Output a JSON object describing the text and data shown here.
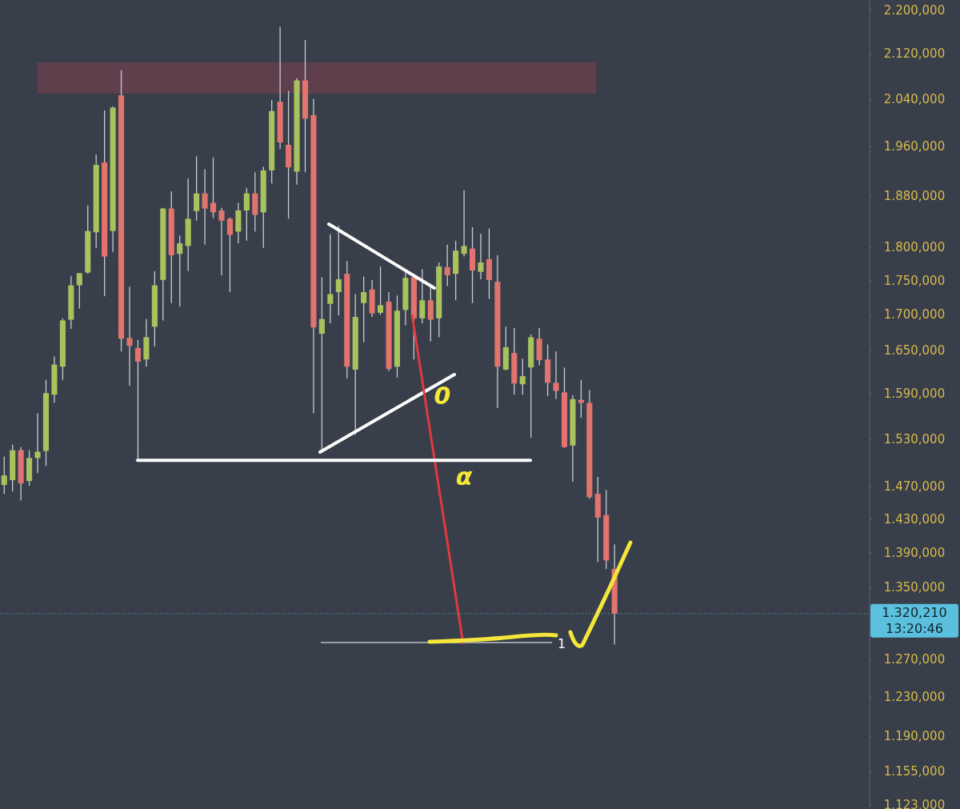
{
  "chart_data": {
    "type": "candlestick",
    "log": true,
    "tick_labels": "y",
    "categories": [
      null,
      null,
      null,
      null,
      null,
      null,
      null,
      null,
      null,
      null,
      null,
      null,
      null,
      null,
      null,
      null,
      null,
      null,
      null,
      null,
      null,
      null,
      null,
      null,
      null,
      null,
      null,
      null,
      null,
      null,
      null,
      null,
      null,
      null,
      null,
      null,
      null,
      null,
      null,
      null,
      null,
      null,
      null,
      null,
      null,
      null,
      null,
      null,
      null,
      null,
      null,
      null,
      null,
      null,
      null,
      null,
      null,
      null,
      null,
      null,
      null,
      null,
      null,
      null,
      null,
      null,
      null,
      null,
      null,
      null,
      null,
      null,
      null,
      null,
      null,
      null,
      null,
      null,
      null,
      null,
      null,
      null,
      null,
      null,
      null,
      null,
      null,
      null,
      null,
      null,
      null,
      null,
      null,
      null,
      null,
      null,
      null,
      null,
      null,
      null,
      null,
      null,
      null,
      null
    ],
    "ohlc": [
      [
        1472,
        1508,
        1461,
        1484
      ],
      [
        1478,
        1523,
        1464,
        1516
      ],
      [
        1516,
        1520,
        1453,
        1474
      ],
      [
        1477,
        1516,
        1471,
        1506
      ],
      [
        1506,
        1564,
        1487,
        1514
      ],
      [
        1515,
        1609,
        1496,
        1591
      ],
      [
        1589,
        1641,
        1578,
        1630
      ],
      [
        1627,
        1695,
        1609,
        1692
      ],
      [
        1693,
        1757,
        1680,
        1743
      ],
      [
        1743,
        1761,
        1709,
        1761
      ],
      [
        1762,
        1865,
        1760,
        1825
      ],
      [
        1823,
        1947,
        1799,
        1930
      ],
      [
        1934,
        2021,
        1727,
        1786
      ],
      [
        1825,
        2028,
        1793,
        2026
      ],
      [
        2047,
        2091,
        1648,
        1666
      ],
      [
        1667,
        1741,
        1601,
        1656
      ],
      [
        1653,
        1664,
        1503,
        1634
      ],
      [
        1637,
        1694,
        1627,
        1668
      ],
      [
        1683,
        1764,
        1655,
        1743
      ],
      [
        1751,
        1861,
        1692,
        1860
      ],
      [
        1860,
        1887,
        1717,
        1788
      ],
      [
        1790,
        1818,
        1712,
        1806
      ],
      [
        1802,
        1908,
        1764,
        1844
      ],
      [
        1856,
        1944,
        1841,
        1884
      ],
      [
        1884,
        1923,
        1804,
        1860
      ],
      [
        1869,
        1942,
        1845,
        1854
      ],
      [
        1857,
        1861,
        1758,
        1841
      ],
      [
        1844,
        1846,
        1733,
        1819
      ],
      [
        1824,
        1869,
        1806,
        1857
      ],
      [
        1857,
        1893,
        1810,
        1884
      ],
      [
        1884,
        1918,
        1824,
        1850
      ],
      [
        1854,
        1927,
        1799,
        1921
      ],
      [
        1921,
        2039,
        1900,
        2020
      ],
      [
        2036,
        2169,
        1956,
        1967
      ],
      [
        1963,
        2055,
        1844,
        1926
      ],
      [
        1919,
        2077,
        1898,
        2073
      ],
      [
        2073,
        2145,
        1918,
        2007
      ],
      [
        2013,
        2041,
        1564,
        1682
      ],
      [
        1673,
        1755,
        1514,
        1694
      ],
      [
        1716,
        1820,
        1688,
        1730
      ],
      [
        1733,
        1833,
        1699,
        1752
      ],
      [
        1760,
        1779,
        1611,
        1627
      ],
      [
        1623,
        1730,
        1536,
        1697
      ],
      [
        1717,
        1756,
        1661,
        1733
      ],
      [
        1737,
        1751,
        1697,
        1702
      ],
      [
        1703,
        1771,
        1700,
        1714
      ],
      [
        1719,
        1733,
        1621,
        1624
      ],
      [
        1627,
        1728,
        1612,
        1706
      ],
      [
        1707,
        1767,
        1685,
        1754
      ],
      [
        1755,
        1760,
        1637,
        1695
      ],
      [
        1695,
        1767,
        1688,
        1721
      ],
      [
        1721,
        1745,
        1662,
        1693
      ],
      [
        1695,
        1777,
        1668,
        1771
      ],
      [
        1770,
        1804,
        1742,
        1758
      ],
      [
        1760,
        1810,
        1721,
        1795
      ],
      [
        1790,
        1889,
        1786,
        1802
      ],
      [
        1798,
        1831,
        1717,
        1765
      ],
      [
        1763,
        1821,
        1752,
        1777
      ],
      [
        1782,
        1829,
        1723,
        1751
      ],
      [
        1748,
        1788,
        1571,
        1627
      ],
      [
        1623,
        1683,
        1622,
        1654
      ],
      [
        1646,
        1681,
        1589,
        1604
      ],
      [
        1603,
        1638,
        1589,
        1614
      ],
      [
        1626,
        1672,
        1532,
        1668
      ],
      [
        1666,
        1681,
        1629,
        1636
      ],
      [
        1637,
        1658,
        1587,
        1605
      ],
      [
        1605,
        1648,
        1583,
        1594
      ],
      [
        1592,
        1626,
        1519,
        1520
      ],
      [
        1522,
        1588,
        1476,
        1583
      ],
      [
        1582,
        1609,
        1558,
        1578
      ],
      [
        1578,
        1595,
        1455,
        1457
      ],
      [
        1461,
        1482,
        1379,
        1432
      ],
      [
        1435,
        1466,
        1371,
        1381
      ],
      [
        1371,
        1400,
        1286,
        1320.21
      ],
      null,
      null,
      null,
      null,
      null,
      null,
      null,
      null,
      null,
      null,
      null,
      null,
      null,
      null,
      null,
      null,
      null,
      null,
      null,
      null,
      null,
      null,
      null,
      null,
      null,
      null,
      null,
      null,
      null,
      null
    ],
    "colors": [
      "#a8c35e",
      "#a8c35e",
      "#e27470",
      "#a8c35e",
      "#a8c35e",
      "#a8c35e",
      "#a8c35e",
      "#a8c35e",
      "#a8c35e",
      "#a8c35e",
      "#a8c35e",
      "#a8c35e",
      "#e27470",
      "#a8c35e",
      "#e27470",
      "#e27470",
      "#e27470",
      "#a8c35e",
      "#a8c35e",
      "#a8c35e",
      "#e27470",
      "#a8c35e",
      "#a8c35e",
      "#a8c35e",
      "#e27470",
      "#e27470",
      "#e27470",
      "#e27470",
      "#a8c35e",
      "#a8c35e",
      "#e27470",
      "#a8c35e",
      "#a8c35e",
      "#e27470",
      "#e27470",
      "#a8c35e",
      "#e27470",
      "#e27470",
      "#a8c35e",
      "#a8c35e",
      "#a8c35e",
      "#e27470",
      "#a8c35e",
      "#a8c35e",
      "#e27470",
      "#a8c35e",
      "#e27470",
      "#a8c35e",
      "#a8c35e",
      "#e27470",
      "#a8c35e",
      "#e27470",
      "#a8c35e",
      "#e27470",
      "#a8c35e",
      "#a8c35e",
      "#e27470",
      "#a8c35e",
      "#e27470",
      "#e27470",
      "#a8c35e",
      "#e27470",
      "#a8c35e",
      "#a8c35e",
      "#e27470",
      "#e27470",
      "#e27470",
      "#e27470",
      "#a8c35e",
      "#e27470",
      "#e27470",
      "#e27470",
      "#e27470",
      "#e27470",
      null,
      null,
      null,
      null,
      null,
      null,
      null,
      null,
      null,
      null,
      null,
      null,
      null,
      null,
      null,
      null,
      null,
      null,
      null,
      null,
      null,
      null,
      null,
      null,
      null,
      null,
      null,
      null,
      null,
      null
    ],
    "ylim": [
      1119,
      2219
    ],
    "yticks": [
      {
        "value": 2200,
        "label": "2.200,000"
      },
      {
        "value": 2120,
        "label": "2.120,000"
      },
      {
        "value": 2040,
        "label": "2.040,000"
      },
      {
        "value": 1960,
        "label": "1.960,000"
      },
      {
        "value": 1880,
        "label": "1.880,000"
      },
      {
        "value": 1800,
        "label": "1.800,000"
      },
      {
        "value": 1750,
        "label": "1.750,000"
      },
      {
        "value": 1700,
        "label": "1.700,000"
      },
      {
        "value": 1650,
        "label": "1.650,000"
      },
      {
        "value": 1590,
        "label": "1.590,000"
      },
      {
        "value": 1530,
        "label": "1.530,000"
      },
      {
        "value": 1470,
        "label": "1.470,000"
      },
      {
        "value": 1430,
        "label": "1.430,000"
      },
      {
        "value": 1390,
        "label": "1.390,000"
      },
      {
        "value": 1350,
        "label": "1.350,000"
      },
      {
        "value": 1270,
        "label": "1.270,000"
      },
      {
        "value": 1230,
        "label": "1.230,000"
      },
      {
        "value": 1190,
        "label": "1.190,000"
      },
      {
        "value": 1155,
        "label": "1.155,000"
      },
      {
        "value": 1123,
        "label": "1.123,000"
      }
    ],
    "bands": [
      {
        "axis": "y",
        "from": 2050,
        "to": 2105,
        "color": "#5e3f4b"
      }
    ],
    "ref_lines": [
      {
        "axis": "y",
        "value": 1320.21,
        "label": "1.320,210",
        "color": "#5bc0de",
        "line_style": "dotted"
      },
      {
        "axis": "y",
        "value": 1503,
        "color": "#ffffff",
        "line_style": "solid"
      }
    ],
    "annotations": [
      "0",
      "α",
      "13:20:46",
      "1"
    ]
  }
}
